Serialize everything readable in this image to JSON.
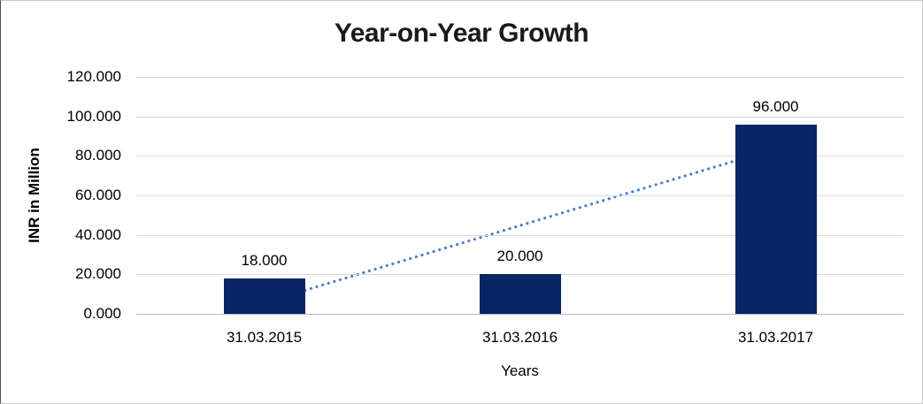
{
  "chart_data": {
    "type": "bar",
    "title": "Year-on-Year Growth",
    "xlabel": "Years",
    "ylabel": "INR in Million",
    "categories": [
      "31.03.2015",
      "31.03.2016",
      "31.03.2017"
    ],
    "values": [
      18,
      20,
      96
    ],
    "value_labels": [
      "18.000",
      "20.000",
      "96.000"
    ],
    "ylim": [
      0,
      120
    ],
    "ytick_step": 20,
    "ytick_labels": [
      "0.000",
      "20.000",
      "40.000",
      "60.000",
      "80.000",
      "100.000",
      "120.000"
    ],
    "grid": true,
    "legend": "none",
    "colors": {
      "bar": "#082663",
      "gridline": "#d9d9d9",
      "axis_line": "#b7b7b7",
      "trendline": "#4e81c4",
      "text": "#000000"
    },
    "trendline": {
      "type": "linear",
      "style": "dotted",
      "start_value": 5.667,
      "end_value": 83.667
    }
  }
}
